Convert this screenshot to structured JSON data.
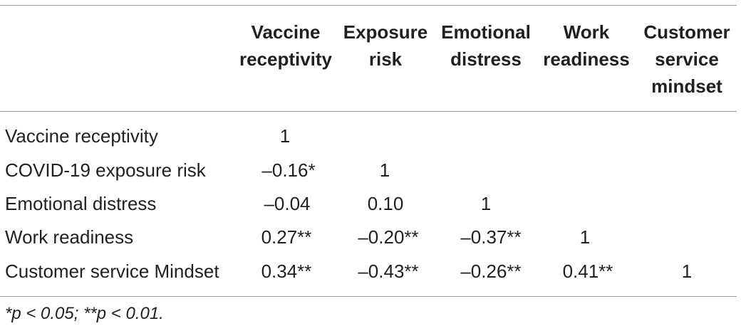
{
  "columns": [
    {
      "line1": "Vaccine",
      "line2": "receptivity",
      "line3": ""
    },
    {
      "line1": "Exposure",
      "line2": "risk",
      "line3": ""
    },
    {
      "line1": "Emotional",
      "line2": "distress",
      "line3": ""
    },
    {
      "line1": "Work",
      "line2": "readiness",
      "line3": ""
    },
    {
      "line1": "Customer",
      "line2": "service",
      "line3": "mindset"
    }
  ],
  "rows": [
    {
      "label": "Vaccine receptivity",
      "cells": [
        "1",
        "",
        "",
        "",
        ""
      ]
    },
    {
      "label": "COVID-19 exposure risk",
      "cells": [
        "–0.16*",
        "1",
        "",
        "",
        ""
      ]
    },
    {
      "label": "Emotional distress",
      "cells": [
        "–0.04",
        "0.10",
        "1",
        "",
        ""
      ]
    },
    {
      "label": "Work readiness",
      "cells": [
        "0.27**",
        "–0.20**",
        "–0.37**",
        "1",
        ""
      ]
    },
    {
      "label": "Customer service Mindset",
      "cells": [
        "0.34**",
        "–0.43**",
        "–0.26**",
        "0.41**",
        "1"
      ]
    }
  ],
  "footnote": "*p < 0.05; **p < 0.01."
}
